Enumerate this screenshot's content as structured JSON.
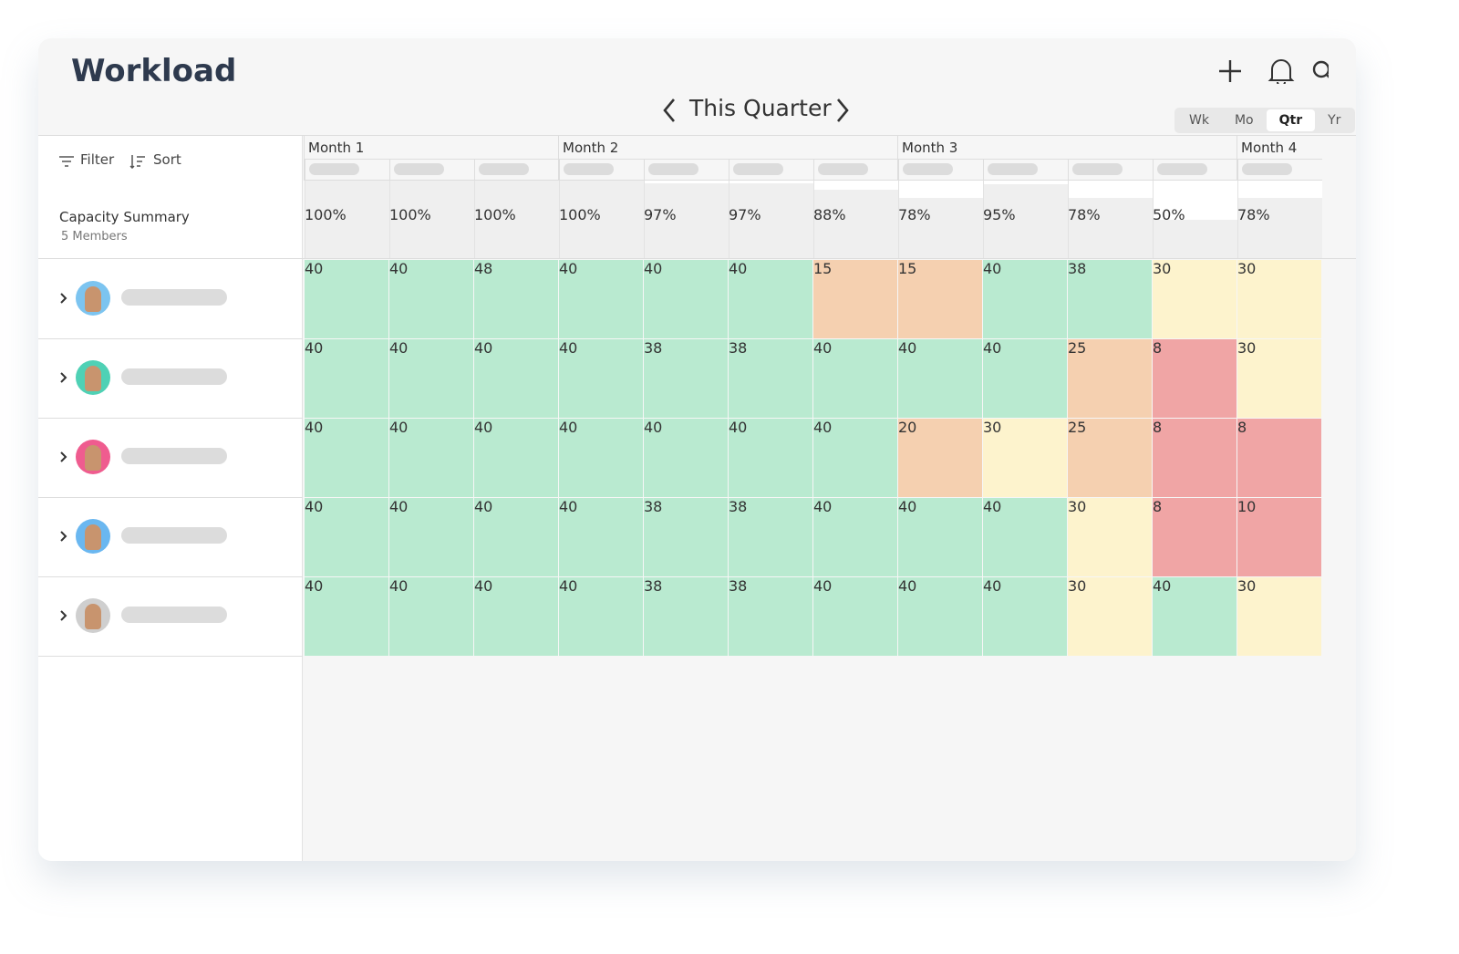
{
  "header": {
    "title": "Workload",
    "period": "This Quarter",
    "views": [
      "Wk",
      "Mo",
      "Qtr",
      "Yr"
    ],
    "active_view": "Qtr"
  },
  "toolbar": {
    "filter": "Filter",
    "sort": "Sort"
  },
  "summary": {
    "title": "Capacity Summary",
    "subtitle": "5 Members"
  },
  "timeline": {
    "month_headers": [
      "Month 1",
      null,
      null,
      "Month 2",
      null,
      null,
      null,
      "Month 3",
      null,
      null,
      null,
      "Month 4"
    ]
  },
  "capacity": {
    "values": [
      100,
      100,
      100,
      100,
      97,
      97,
      88,
      78,
      95,
      78,
      50,
      78
    ],
    "value_labels": [
      "100%",
      "100%",
      "100%",
      "100%",
      "97%",
      "97%",
      "88%",
      "78%",
      "95%",
      "78%",
      "50%",
      "78%"
    ]
  },
  "members": [
    {
      "hours": [
        40,
        40,
        48,
        40,
        40,
        40,
        15,
        15,
        40,
        38,
        30,
        30
      ],
      "colors": [
        "#b9ead0",
        "#b9ead0",
        "#b9ead0",
        "#b9ead0",
        "#b9ead0",
        "#b9ead0",
        "#f5d0b0",
        "#f5d0b0",
        "#b9ead0",
        "#b9ead0",
        "#fdf3cd",
        "#fdf3cd"
      ]
    },
    {
      "hours": [
        40,
        40,
        40,
        40,
        38,
        38,
        40,
        40,
        40,
        25,
        8,
        30
      ],
      "colors": [
        "#b9ead0",
        "#b9ead0",
        "#b9ead0",
        "#b9ead0",
        "#b9ead0",
        "#b9ead0",
        "#b9ead0",
        "#b9ead0",
        "#b9ead0",
        "#f5d0b0",
        "#f0a5a5",
        "#fdf3cd"
      ]
    },
    {
      "hours": [
        40,
        40,
        40,
        40,
        40,
        40,
        40,
        20,
        30,
        25,
        8,
        8
      ],
      "colors": [
        "#b9ead0",
        "#b9ead0",
        "#b9ead0",
        "#b9ead0",
        "#b9ead0",
        "#b9ead0",
        "#b9ead0",
        "#f5d0b0",
        "#fdf3cd",
        "#f5d0b0",
        "#f0a5a5",
        "#f0a5a5"
      ]
    },
    {
      "hours": [
        40,
        40,
        40,
        40,
        38,
        38,
        40,
        40,
        40,
        30,
        8,
        10
      ],
      "colors": [
        "#b9ead0",
        "#b9ead0",
        "#b9ead0",
        "#b9ead0",
        "#b9ead0",
        "#b9ead0",
        "#b9ead0",
        "#b9ead0",
        "#b9ead0",
        "#fdf3cd",
        "#f0a5a5",
        "#f0a5a5"
      ]
    },
    {
      "hours": [
        40,
        40,
        40,
        40,
        38,
        38,
        40,
        40,
        40,
        30,
        40,
        30
      ],
      "colors": [
        "#b9ead0",
        "#b9ead0",
        "#b9ead0",
        "#b9ead0",
        "#b9ead0",
        "#b9ead0",
        "#b9ead0",
        "#b9ead0",
        "#b9ead0",
        "#fdf3cd",
        "#b9ead0",
        "#fdf3cd"
      ]
    }
  ]
}
